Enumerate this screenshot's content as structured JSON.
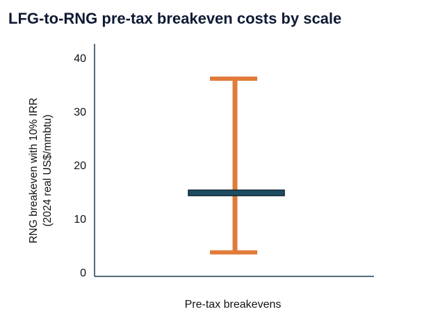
{
  "chart_data": {
    "type": "range",
    "title": "LFG-to-RNG pre-tax breakeven costs by scale",
    "ylabel_line1": "RNG breakeven with 10% IRR",
    "ylabel_line2": "(2024 real US$/mmbtu)",
    "xlabel": "Pre-tax breakevens",
    "ylim": [
      0,
      40
    ],
    "yticks": [
      0,
      10,
      20,
      30,
      40
    ],
    "ytick_labels": [
      "0",
      "10",
      "20",
      "30",
      "40"
    ],
    "grid": false,
    "range": {
      "low": 3.7,
      "high": 36.1
    },
    "central": 14.8,
    "colors": {
      "range": "#e07b39",
      "central": "#1d4e63",
      "axis": "#1f3a4f"
    }
  }
}
